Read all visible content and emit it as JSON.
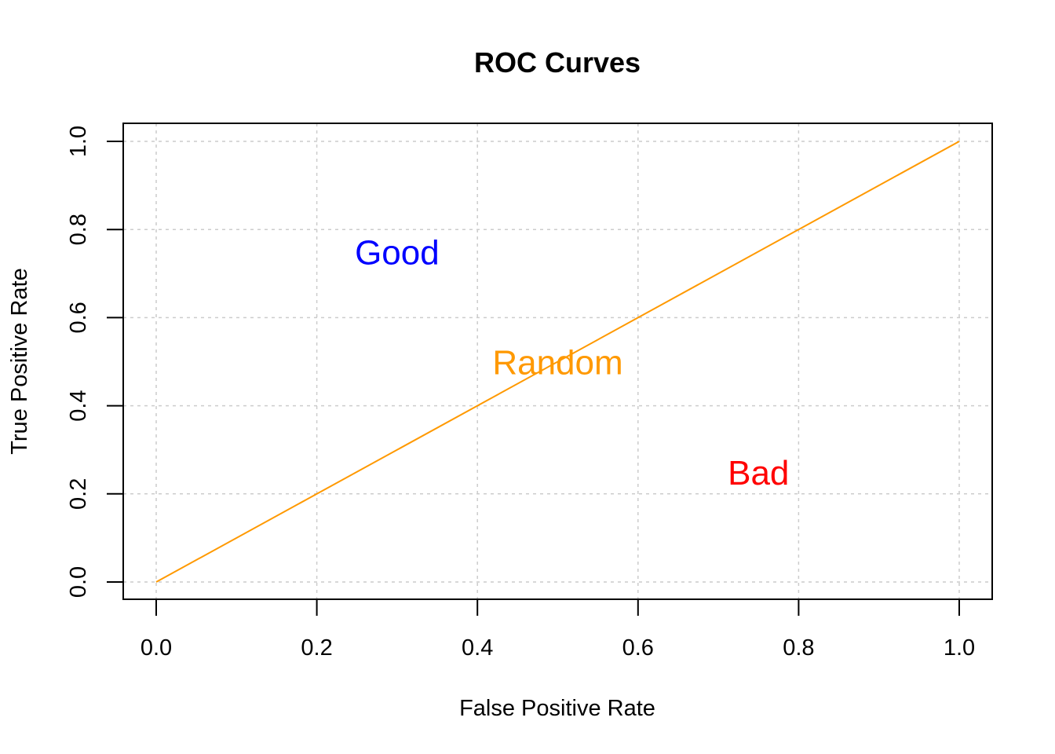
{
  "chart_data": {
    "type": "line",
    "title": "ROC Curves",
    "xlabel": "False Positive Rate",
    "ylabel": "True Positive Rate",
    "xlim": [
      0,
      1
    ],
    "ylim": [
      0,
      1
    ],
    "x_ticks": [
      0,
      0.2,
      0.4,
      0.6,
      0.8,
      1
    ],
    "y_ticks": [
      0,
      0.2,
      0.4,
      0.6,
      0.8,
      1
    ],
    "x_tick_labels": [
      "0.0",
      "0.2",
      "0.4",
      "0.6",
      "0.8",
      "1.0"
    ],
    "y_tick_labels": [
      "0.0",
      "0.2",
      "0.4",
      "0.6",
      "0.8",
      "1.0"
    ],
    "grid": true,
    "series": [
      {
        "x": [
          0,
          1
        ],
        "y": [
          0,
          1
        ],
        "color": "#ff9900"
      }
    ],
    "annotations": [
      {
        "text": "Good",
        "x": 0.3,
        "y": 0.75,
        "color": "#0000ff"
      },
      {
        "text": "Random",
        "x": 0.5,
        "y": 0.5,
        "color": "#ff9900"
      },
      {
        "text": "Bad",
        "x": 0.75,
        "y": 0.25,
        "color": "#ff0000"
      }
    ]
  }
}
